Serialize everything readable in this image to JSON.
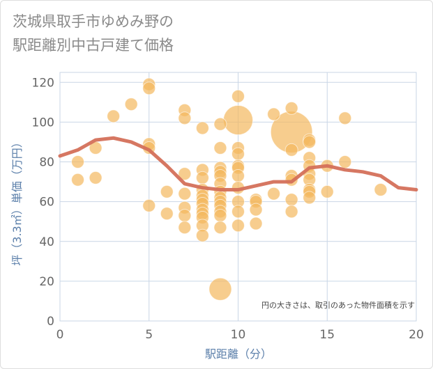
{
  "chart_data": {
    "type": "scatter",
    "title": "茨城県取手市ゆめみ野の\n駅距離別中古戸建て価格",
    "xlabel": "駅距離（分）",
    "ylabel": "坪（3.3㎡）単価（万円）",
    "note": "円の大きさは、取引のあった物件面積を示す",
    "xlim": [
      0,
      20
    ],
    "ylim": [
      0,
      125
    ],
    "xticks": [
      0,
      5,
      10,
      15,
      20
    ],
    "yticks": [
      0,
      20,
      40,
      60,
      80,
      100,
      120
    ],
    "grid": true,
    "colors": {
      "bubble": "#f4b85e",
      "line": "#d4705a",
      "grid": "#c9d6e6"
    },
    "bubbles": [
      {
        "x": 1,
        "y": 80,
        "s": 1
      },
      {
        "x": 1,
        "y": 71,
        "s": 1
      },
      {
        "x": 2,
        "y": 87,
        "s": 1
      },
      {
        "x": 2,
        "y": 72,
        "s": 1
      },
      {
        "x": 3,
        "y": 103,
        "s": 1
      },
      {
        "x": 4,
        "y": 109,
        "s": 1
      },
      {
        "x": 5,
        "y": 119,
        "s": 1
      },
      {
        "x": 5,
        "y": 117,
        "s": 1
      },
      {
        "x": 5,
        "y": 89,
        "s": 1
      },
      {
        "x": 5,
        "y": 87,
        "s": 1
      },
      {
        "x": 5,
        "y": 58,
        "s": 1
      },
      {
        "x": 6,
        "y": 65,
        "s": 1
      },
      {
        "x": 6,
        "y": 54,
        "s": 1
      },
      {
        "x": 7,
        "y": 106,
        "s": 1
      },
      {
        "x": 7,
        "y": 102,
        "s": 1
      },
      {
        "x": 7,
        "y": 74,
        "s": 1
      },
      {
        "x": 7,
        "y": 64,
        "s": 1
      },
      {
        "x": 7,
        "y": 57,
        "s": 1
      },
      {
        "x": 7,
        "y": 53,
        "s": 1
      },
      {
        "x": 7,
        "y": 47,
        "s": 1
      },
      {
        "x": 8,
        "y": 97,
        "s": 1
      },
      {
        "x": 8,
        "y": 76,
        "s": 1
      },
      {
        "x": 8,
        "y": 72,
        "s": 1
      },
      {
        "x": 8,
        "y": 66,
        "s": 1
      },
      {
        "x": 8,
        "y": 63,
        "s": 1
      },
      {
        "x": 8,
        "y": 61,
        "s": 1
      },
      {
        "x": 8,
        "y": 59,
        "s": 1
      },
      {
        "x": 8,
        "y": 56,
        "s": 1
      },
      {
        "x": 8,
        "y": 54,
        "s": 1
      },
      {
        "x": 8,
        "y": 52,
        "s": 1
      },
      {
        "x": 8,
        "y": 48,
        "s": 1
      },
      {
        "x": 8,
        "y": 43,
        "s": 1
      },
      {
        "x": 9,
        "y": 99,
        "s": 1
      },
      {
        "x": 9,
        "y": 87,
        "s": 1
      },
      {
        "x": 9,
        "y": 77,
        "s": 1
      },
      {
        "x": 9,
        "y": 75,
        "s": 1
      },
      {
        "x": 9,
        "y": 73,
        "s": 1
      },
      {
        "x": 9,
        "y": 69,
        "s": 1
      },
      {
        "x": 9,
        "y": 65,
        "s": 1
      },
      {
        "x": 9,
        "y": 62,
        "s": 1
      },
      {
        "x": 9,
        "y": 60,
        "s": 1
      },
      {
        "x": 9,
        "y": 58,
        "s": 1
      },
      {
        "x": 9,
        "y": 55,
        "s": 1
      },
      {
        "x": 9,
        "y": 53,
        "s": 1
      },
      {
        "x": 9,
        "y": 47,
        "s": 1
      },
      {
        "x": 9,
        "y": 16,
        "s": 3.2
      },
      {
        "x": 10,
        "y": 113,
        "s": 1
      },
      {
        "x": 10,
        "y": 101,
        "s": 5.5
      },
      {
        "x": 10,
        "y": 87,
        "s": 1
      },
      {
        "x": 10,
        "y": 84,
        "s": 1
      },
      {
        "x": 10,
        "y": 78,
        "s": 1
      },
      {
        "x": 10,
        "y": 77,
        "s": 1
      },
      {
        "x": 10,
        "y": 73,
        "s": 1
      },
      {
        "x": 10,
        "y": 67,
        "s": 1
      },
      {
        "x": 10,
        "y": 60,
        "s": 1
      },
      {
        "x": 10,
        "y": 55,
        "s": 1
      },
      {
        "x": 10,
        "y": 48,
        "s": 1
      },
      {
        "x": 11,
        "y": 61,
        "s": 1
      },
      {
        "x": 11,
        "y": 60,
        "s": 1
      },
      {
        "x": 11,
        "y": 56,
        "s": 1
      },
      {
        "x": 11,
        "y": 49,
        "s": 1
      },
      {
        "x": 12,
        "y": 104,
        "s": 1
      },
      {
        "x": 12,
        "y": 64,
        "s": 1
      },
      {
        "x": 13,
        "y": 107,
        "s": 1
      },
      {
        "x": 13,
        "y": 95,
        "s": 11
      },
      {
        "x": 13,
        "y": 86,
        "s": 1
      },
      {
        "x": 13,
        "y": 73,
        "s": 1
      },
      {
        "x": 13,
        "y": 71,
        "s": 1
      },
      {
        "x": 13,
        "y": 61,
        "s": 1
      },
      {
        "x": 13,
        "y": 55,
        "s": 1
      },
      {
        "x": 14,
        "y": 91,
        "s": 1
      },
      {
        "x": 14,
        "y": 90,
        "s": 1
      },
      {
        "x": 14,
        "y": 82,
        "s": 1
      },
      {
        "x": 14,
        "y": 78,
        "s": 1
      },
      {
        "x": 14,
        "y": 74,
        "s": 1
      },
      {
        "x": 14,
        "y": 71,
        "s": 1
      },
      {
        "x": 14,
        "y": 66,
        "s": 1
      },
      {
        "x": 14,
        "y": 65,
        "s": 1
      },
      {
        "x": 14,
        "y": 62,
        "s": 1
      },
      {
        "x": 15,
        "y": 78,
        "s": 1
      },
      {
        "x": 15,
        "y": 65,
        "s": 1
      },
      {
        "x": 16,
        "y": 102,
        "s": 1
      },
      {
        "x": 16,
        "y": 80,
        "s": 1
      },
      {
        "x": 18,
        "y": 66,
        "s": 1
      }
    ],
    "trend": {
      "x": [
        0,
        1,
        2,
        3,
        4,
        5,
        6,
        7,
        8,
        9,
        10,
        11,
        12,
        13,
        14,
        15,
        16,
        17,
        18,
        19,
        20
      ],
      "y": [
        83,
        86,
        91,
        92,
        90,
        86,
        78,
        69,
        67,
        66,
        66,
        68,
        70,
        70,
        77,
        78,
        76,
        75,
        73,
        67,
        66
      ]
    }
  }
}
